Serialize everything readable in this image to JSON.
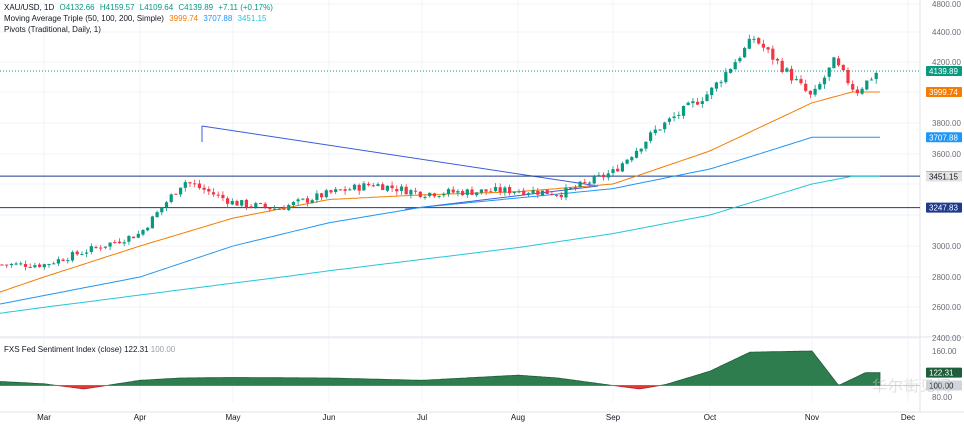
{
  "header": {
    "symbol": "XAU/USD, 1D",
    "open": "O4132.66",
    "high": "H4159.57",
    "low": "L4109.64",
    "close": "C4139.89",
    "change": "+7.11 (+0.17%)",
    "ma_label": "Moving Average Triple (50, 100, 200, Simple)",
    "ma50_value": "3999.74",
    "ma100_value": "3707.88",
    "ma200_value": "3451.15",
    "pivots_label": "Pivots (Traditional, Daily, 1)"
  },
  "indicator": {
    "label": "FXS Fed Sentiment Index (close)",
    "value": "122.31",
    "value2": "100.00"
  },
  "price_axis": {
    "ticks": [
      "4800.00",
      "4400.00",
      "4200.00",
      "3800.00",
      "3600.00",
      "3000.00",
      "2800.00",
      "2600.00",
      "2400.00"
    ],
    "badges": [
      {
        "label": "4139.89",
        "color": "#089981"
      },
      {
        "label": "3999.74",
        "color": "#f57c00"
      },
      {
        "label": "3707.88",
        "color": "#2196f3"
      },
      {
        "label": "3452.72",
        "color": "#1e3a8a"
      },
      {
        "label": "3451.15",
        "color": "#e3e3e3"
      },
      {
        "label": "3247.83",
        "color": "#1e3a8a"
      }
    ]
  },
  "indicator_axis": {
    "ticks": [
      "160.00",
      "80.00"
    ],
    "badges": [
      {
        "label": "122.31"
      },
      {
        "label": "100.00"
      }
    ]
  },
  "time_axis": [
    "Mar",
    "Apr",
    "May",
    "Jun",
    "Jul",
    "Aug",
    "Sep",
    "Oct",
    "Nov",
    "Dec"
  ],
  "colors": {
    "up": "#089981",
    "down": "#f23645",
    "ma50": "#f57c00",
    "ma100": "#2196f3",
    "ma200": "#26c6da",
    "pivot": "#1e3a8a",
    "area_pos": "#2e7d4f",
    "area_neg": "#e53935"
  },
  "watermark": "华尔街见闻",
  "chart_data": {
    "type": "candlestick",
    "y_range": [
      2400,
      4800
    ],
    "x_labels": [
      "Mar",
      "Apr",
      "May",
      "Jun",
      "Jul",
      "Aug",
      "Sep",
      "Oct",
      "Nov",
      "Dec"
    ],
    "price_anchors": [
      [
        "Feb",
        2880
      ],
      [
        "Mar",
        2880
      ],
      [
        "Apr",
        3080
      ],
      [
        "Apr",
        3420
      ],
      [
        "May",
        3280
      ],
      [
        "May",
        3240
      ],
      [
        "Jun",
        3340
      ],
      [
        "Jun",
        3400
      ],
      [
        "Jul",
        3340
      ],
      [
        "Jul",
        3350
      ],
      [
        "Aug",
        3360
      ],
      [
        "Aug",
        3340
      ],
      [
        "Sep",
        3480
      ],
      [
        "Sep",
        3760
      ],
      [
        "Oct",
        4000
      ],
      [
        "Oct",
        4360
      ],
      [
        "Nov",
        3960
      ],
      [
        "Nov",
        4200
      ],
      [
        "Nov",
        4000
      ],
      [
        "Nov",
        4139.89
      ]
    ],
    "ma50_anchors": [
      [
        "Feb",
        2700
      ],
      [
        "Mar",
        2800
      ],
      [
        "Apr",
        3000
      ],
      [
        "May",
        3180
      ],
      [
        "Jun",
        3300
      ],
      [
        "Jul",
        3330
      ],
      [
        "Aug",
        3350
      ],
      [
        "Sep",
        3400
      ],
      [
        "Oct",
        3620
      ],
      [
        "Nov",
        3930
      ],
      [
        "Nov",
        3999.74
      ]
    ],
    "ma100_anchors": [
      [
        "Feb",
        2620
      ],
      [
        "Apr",
        2800
      ],
      [
        "May",
        3000
      ],
      [
        "Jun",
        3150
      ],
      [
        "Jul",
        3250
      ],
      [
        "Aug",
        3310
      ],
      [
        "Sep",
        3370
      ],
      [
        "Oct",
        3500
      ],
      [
        "Nov",
        3707.88
      ]
    ],
    "ma200_anchors": [
      [
        "Feb",
        2560
      ],
      [
        "Apr",
        2680
      ],
      [
        "Jun",
        2840
      ],
      [
        "Aug",
        2990
      ],
      [
        "Sep",
        3080
      ],
      [
        "Oct",
        3200
      ],
      [
        "Nov",
        3400
      ],
      [
        "Nov",
        3451.15
      ]
    ],
    "pivot_levels": [
      3452.72,
      3247.83
    ],
    "last_price": 4139.89,
    "indicator": {
      "name": "FXS Fed Sentiment Index",
      "range": [
        80,
        160
      ],
      "baseline": 100,
      "anchors": [
        [
          "Feb",
          107
        ],
        [
          "Mar",
          103
        ],
        [
          "Mar",
          94
        ],
        [
          "Apr",
          109
        ],
        [
          "Apr",
          113
        ],
        [
          "May",
          114
        ],
        [
          "Jun",
          113
        ],
        [
          "Jul",
          109
        ],
        [
          "Aug",
          118
        ],
        [
          "Aug",
          113
        ],
        [
          "Sep",
          100
        ],
        [
          "Sep",
          94
        ],
        [
          "Sep",
          102
        ],
        [
          "Oct",
          125
        ],
        [
          "Oct",
          158
        ],
        [
          "Nov",
          160
        ],
        [
          "Nov",
          100
        ],
        [
          "Nov",
          122.31
        ]
      ]
    }
  }
}
